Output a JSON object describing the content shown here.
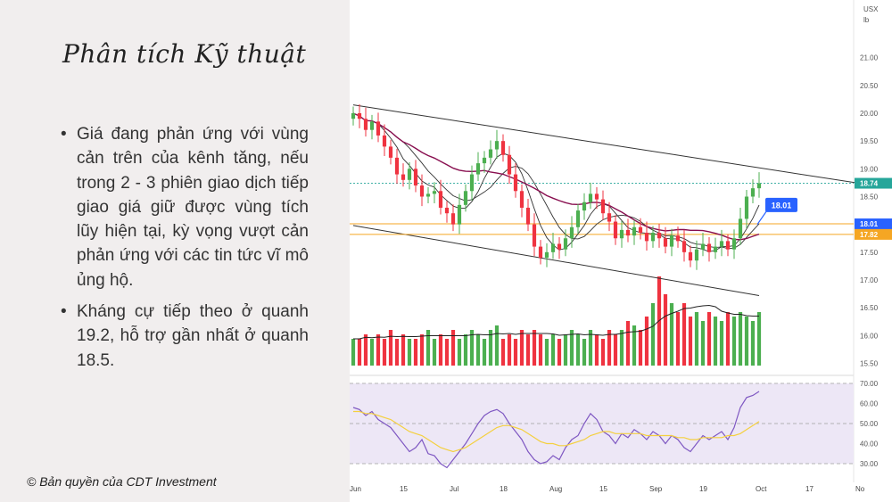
{
  "slide": {
    "title": "Phân tích Kỹ thuật",
    "bullets": [
      "Giá đang phản ứng với vùng cản trên của kênh tăng, nếu trong 2 - 3 phiên giao dịch tiếp giao giá giữ được vùng tích lũy hiện tại, kỳ vọng vượt cản phản ứng với các tin tức vĩ mô ủng hộ.",
      "Kháng cự tiếp theo ở quanh 19.2, hỗ trợ gần nhất ở quanh 18.5."
    ],
    "copyright": "© Bản quyền của CDT Investment"
  },
  "chart_data": {
    "type": "candlestick",
    "currency": "USX",
    "unit": "lb",
    "price_axis": {
      "ylim": [
        15.5,
        21.5
      ],
      "ticks": [
        "21.00",
        "20.50",
        "20.00",
        "19.50",
        "19.00",
        "18.50",
        "18.00",
        "17.50",
        "17.00",
        "16.50",
        "16.00",
        "15.50"
      ]
    },
    "price_labels": [
      {
        "value": 18.74,
        "text": "18.74",
        "color": "#26a69a"
      },
      {
        "value": 18.01,
        "text": "18.01",
        "color": "#2962ff"
      },
      {
        "value": 17.82,
        "text": "17.82",
        "color": "#f5a623"
      }
    ],
    "callout": {
      "value": 18.01,
      "text": "18.01",
      "color": "#2962ff"
    },
    "horizontal_levels": [
      18.01,
      17.82
    ],
    "candles": {
      "start_price": 19.9,
      "colors": {
        "up": "#4caf50",
        "down": "#ef3340"
      },
      "closes": [
        20.0,
        19.9,
        19.7,
        19.85,
        19.6,
        19.4,
        19.2,
        18.9,
        18.8,
        19.0,
        18.7,
        18.5,
        18.55,
        18.6,
        18.3,
        18.2,
        18.0,
        18.35,
        18.6,
        18.9,
        19.1,
        19.2,
        19.35,
        19.5,
        19.25,
        18.9,
        18.6,
        18.3,
        18.0,
        17.6,
        17.4,
        17.5,
        17.65,
        17.55,
        17.75,
        17.95,
        18.25,
        18.4,
        18.55,
        18.45,
        18.2,
        18.05,
        17.75,
        17.9,
        17.8,
        17.95,
        17.85,
        17.7,
        17.85,
        17.75,
        17.6,
        17.8,
        17.7,
        17.5,
        17.35,
        17.55,
        17.65,
        17.5,
        17.6,
        17.7,
        17.55,
        17.75,
        18.1,
        18.5,
        18.65,
        18.74
      ]
    },
    "channel": {
      "upper": [
        [
          0,
          20.15
        ],
        [
          81,
          18.74
        ]
      ],
      "lower": [
        [
          0,
          17.98
        ],
        [
          65,
          16.72
        ]
      ]
    },
    "volume": {
      "values": [
        0.3,
        0.3,
        0.35,
        0.3,
        0.35,
        0.3,
        0.4,
        0.3,
        0.35,
        0.3,
        0.3,
        0.35,
        0.4,
        0.3,
        0.35,
        0.3,
        0.4,
        0.3,
        0.35,
        0.4,
        0.35,
        0.3,
        0.4,
        0.45,
        0.3,
        0.35,
        0.3,
        0.4,
        0.35,
        0.4,
        0.35,
        0.3,
        0.35,
        0.3,
        0.35,
        0.4,
        0.35,
        0.3,
        0.4,
        0.35,
        0.3,
        0.4,
        0.35,
        0.4,
        0.5,
        0.45,
        0.4,
        0.55,
        0.7,
        1.0,
        0.8,
        0.7,
        0.6,
        0.7,
        0.55,
        0.6,
        0.5,
        0.6,
        0.55,
        0.5,
        0.6,
        0.55,
        0.6,
        0.55,
        0.5,
        0.6
      ]
    },
    "rsi": {
      "axis_ticks": [
        "70.00",
        "60.00",
        "50.00",
        "40.00",
        "30.00"
      ],
      "ylim": [
        26,
        72
      ],
      "band": [
        30,
        70
      ],
      "midline": 50,
      "values": [
        58,
        57,
        54,
        56,
        52,
        50,
        48,
        44,
        40,
        36,
        38,
        42,
        35,
        34,
        30,
        28,
        32,
        36,
        40,
        45,
        50,
        54,
        56,
        57,
        55,
        50,
        46,
        42,
        36,
        32,
        30,
        31,
        34,
        32,
        38,
        42,
        44,
        50,
        55,
        52,
        46,
        44,
        40,
        45,
        43,
        47,
        45,
        42,
        46,
        44,
        40,
        44,
        42,
        38,
        36,
        40,
        44,
        42,
        44,
        46,
        42,
        48,
        58,
        63,
        64,
        66
      ],
      "ma_values": [
        56,
        56,
        55,
        55,
        54,
        53,
        52,
        50,
        48,
        46,
        45,
        44,
        42,
        40,
        38,
        37,
        36,
        37,
        38,
        40,
        42,
        44,
        46,
        48,
        49,
        49,
        48,
        47,
        45,
        43,
        41,
        40,
        40,
        39,
        39,
        40,
        41,
        42,
        44,
        45,
        46,
        46,
        45,
        45,
        45,
        45,
        45,
        44,
        44,
        44,
        44,
        44,
        43,
        43,
        42,
        42,
        43,
        43,
        43,
        43,
        44,
        44,
        45,
        47,
        49,
        51
      ]
    },
    "x_ticks": [
      "Jun",
      "15",
      "Jul",
      "18",
      "Aug",
      "15",
      "Sep",
      "19",
      "Oct",
      "17",
      "No"
    ],
    "colors": {
      "ma_fast": "#333333",
      "ma_slow": "#880e4f",
      "rsi_line": "#7e57c2",
      "rsi_ma": "#f4d03f",
      "rsi_band": "#ede7f6",
      "level_line": "#f5a623"
    }
  }
}
